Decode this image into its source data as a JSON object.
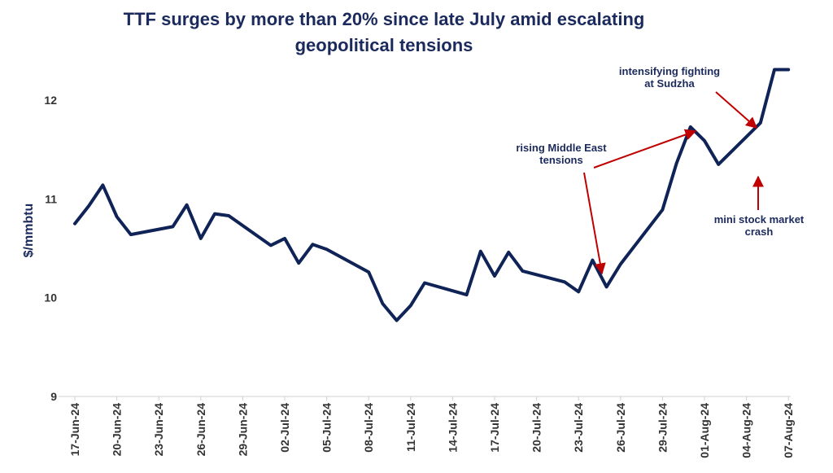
{
  "chart_data": {
    "type": "line",
    "title_line1": "TTF surges by more than 20% since late July amid escalating",
    "title_line2": "geopolitical tensions",
    "ylabel": "$/mmbtu",
    "ylim": [
      9,
      12.5
    ],
    "yticks": [
      9,
      10,
      11,
      12
    ],
    "xtick_labels": [
      "17-Jun-24",
      "20-Jun-24",
      "23-Jun-24",
      "26-Jun-24",
      "29-Jun-24",
      "02-Jul-24",
      "05-Jul-24",
      "08-Jul-24",
      "11-Jul-24",
      "14-Jul-24",
      "17-Jul-24",
      "20-Jul-24",
      "23-Jul-24",
      "26-Jul-24",
      "29-Jul-24",
      "01-Aug-24",
      "04-Aug-24",
      "07-Aug-24"
    ],
    "series": [
      {
        "color": "#0f2357",
        "x": [
          "17-Jun-24",
          "18-Jun-24",
          "19-Jun-24",
          "20-Jun-24",
          "21-Jun-24",
          "24-Jun-24",
          "25-Jun-24",
          "26-Jun-24",
          "27-Jun-24",
          "28-Jun-24",
          "01-Jul-24",
          "02-Jul-24",
          "03-Jul-24",
          "04-Jul-24",
          "05-Jul-24",
          "08-Jul-24",
          "09-Jul-24",
          "10-Jul-24",
          "11-Jul-24",
          "12-Jul-24",
          "15-Jul-24",
          "16-Jul-24",
          "17-Jul-24",
          "18-Jul-24",
          "19-Jul-24",
          "22-Jul-24",
          "23-Jul-24",
          "24-Jul-24",
          "25-Jul-24",
          "26-Jul-24",
          "29-Jul-24",
          "30-Jul-24",
          "31-Jul-24",
          "01-Aug-24",
          "02-Aug-24",
          "05-Aug-24",
          "06-Aug-24",
          "07-Aug-24"
        ],
        "values": [
          10.75,
          10.93,
          11.14,
          10.82,
          10.64,
          10.72,
          10.94,
          10.6,
          10.85,
          10.83,
          10.53,
          10.6,
          10.35,
          10.54,
          10.49,
          10.26,
          9.94,
          9.77,
          9.92,
          10.15,
          10.03,
          10.47,
          10.22,
          10.46,
          10.27,
          10.16,
          10.06,
          10.38,
          10.11,
          10.34,
          10.89,
          11.36,
          11.73,
          11.59,
          11.35,
          11.77,
          12.31,
          12.31
        ]
      }
    ],
    "annotations": [
      {
        "lines": [
          "intensifying fighting",
          "at Sudzha"
        ],
        "color": "#c00000"
      },
      {
        "lines": [
          "rising Middle East",
          "tensions"
        ],
        "color": "#c00000"
      },
      {
        "lines": [
          "mini stock market",
          "crash"
        ],
        "color": "#c00000"
      }
    ]
  }
}
